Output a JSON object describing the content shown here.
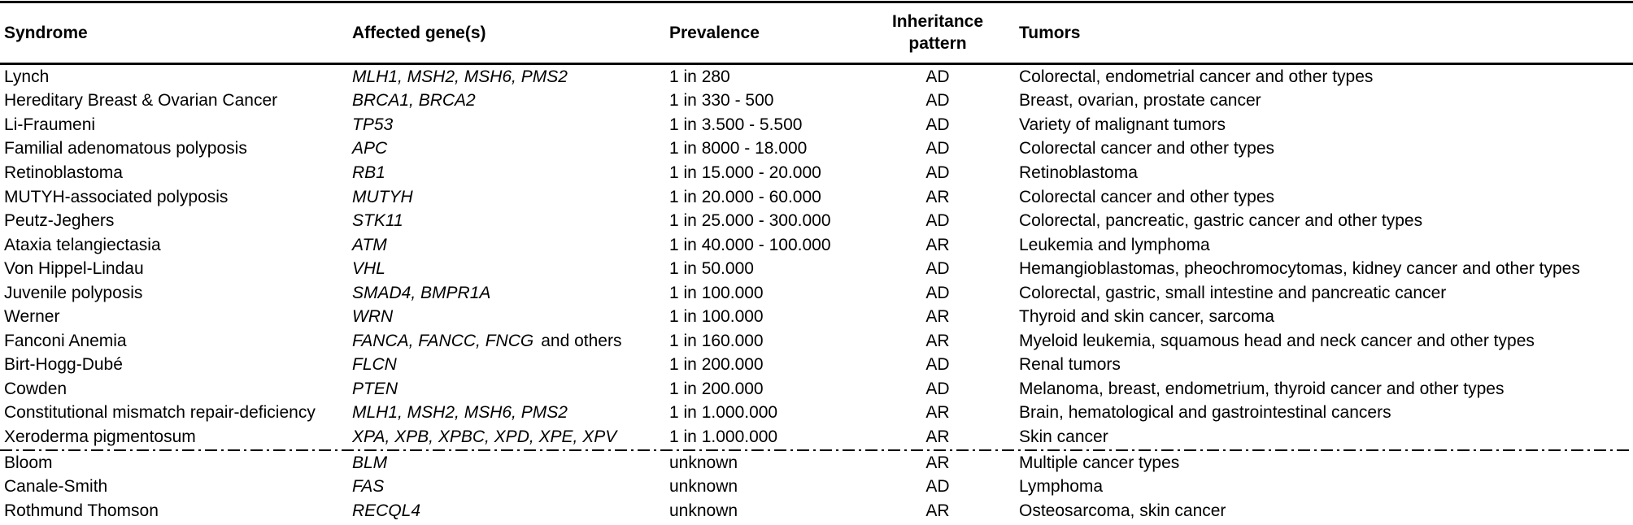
{
  "table": {
    "columns": [
      {
        "key": "syndrome",
        "label": "Syndrome"
      },
      {
        "key": "genes",
        "label": "Affected gene(s)"
      },
      {
        "key": "prevalence",
        "label": "Prevalence"
      },
      {
        "key": "inheritance",
        "label": "Inheritance pattern"
      },
      {
        "key": "tumors",
        "label": "Tumors"
      }
    ],
    "rows": [
      {
        "syndrome": "Lynch",
        "genes": "MLH1, MSH2, MSH6, PMS2",
        "genes_suffix": "",
        "prevalence": "1 in 280",
        "inheritance": "AD",
        "tumors": "Colorectal, endometrial cancer and other types"
      },
      {
        "syndrome": "Hereditary Breast & Ovarian Cancer",
        "genes": "BRCA1, BRCA2",
        "genes_suffix": "",
        "prevalence": "1 in 330 - 500",
        "inheritance": "AD",
        "tumors": "Breast, ovarian, prostate cancer"
      },
      {
        "syndrome": "Li-Fraumeni",
        "genes": "TP53",
        "genes_suffix": "",
        "prevalence": "1 in 3.500 - 5.500",
        "inheritance": "AD",
        "tumors": "Variety of malignant tumors"
      },
      {
        "syndrome": "Familial adenomatous polyposis",
        "genes": "APC",
        "genes_suffix": "",
        "prevalence": "1 in 8000 - 18.000",
        "inheritance": "AD",
        "tumors": "Colorectal cancer and other types"
      },
      {
        "syndrome": "Retinoblastoma",
        "genes": "RB1",
        "genes_suffix": "",
        "prevalence": "1 in 15.000 - 20.000",
        "inheritance": "AD",
        "tumors": "Retinoblastoma"
      },
      {
        "syndrome": "MUTYH-associated polyposis",
        "genes": "MUTYH",
        "genes_suffix": "",
        "prevalence": "1 in 20.000 - 60.000",
        "inheritance": "AR",
        "tumors": "Colorectal cancer and other types"
      },
      {
        "syndrome": "Peutz-Jeghers",
        "genes": "STK11",
        "genes_suffix": "",
        "prevalence": "1 in 25.000 - 300.000",
        "inheritance": "AD",
        "tumors": "Colorectal, pancreatic, gastric cancer and other types"
      },
      {
        "syndrome": "Ataxia telangiectasia",
        "genes": "ATM",
        "genes_suffix": "",
        "prevalence": "1 in 40.000 - 100.000",
        "inheritance": "AR",
        "tumors": "Leukemia and lymphoma"
      },
      {
        "syndrome": "Von Hippel-Lindau",
        "genes": "VHL",
        "genes_suffix": "",
        "prevalence": "1 in 50.000",
        "inheritance": "AD",
        "tumors": "Hemangioblastomas, pheochromocytomas, kidney cancer and other types"
      },
      {
        "syndrome": "Juvenile polyposis",
        "genes": "SMAD4, BMPR1A",
        "genes_suffix": "",
        "prevalence": "1 in 100.000",
        "inheritance": "AD",
        "tumors": "Colorectal, gastric, small intestine and pancreatic cancer"
      },
      {
        "syndrome": "Werner",
        "genes": "WRN",
        "genes_suffix": "",
        "prevalence": "1 in 100.000",
        "inheritance": "AR",
        "tumors": "Thyroid and skin cancer, sarcoma"
      },
      {
        "syndrome": "Fanconi Anemia",
        "genes": "FANCA, FANCC, FNCG",
        "genes_suffix": "and others",
        "prevalence": "1 in 160.000",
        "inheritance": "AR",
        "tumors": "Myeloid leukemia, squamous head and neck cancer and other types"
      },
      {
        "syndrome": "Birt-Hogg-Dubé",
        "genes": "FLCN",
        "genes_suffix": "",
        "prevalence": "1 in 200.000",
        "inheritance": "AD",
        "tumors": "Renal tumors"
      },
      {
        "syndrome": "Cowden",
        "genes": "PTEN",
        "genes_suffix": "",
        "prevalence": "1 in 200.000",
        "inheritance": "AD",
        "tumors": "Melanoma, breast, endometrium, thyroid cancer and other types"
      },
      {
        "syndrome": "Constitutional mismatch repair-deficiency",
        "genes": "MLH1, MSH2, MSH6, PMS2",
        "genes_suffix": "",
        "prevalence": "1 in 1.000.000",
        "inheritance": "AR",
        "tumors": "Brain, hematological and gastrointestinal cancers"
      },
      {
        "syndrome": "Xeroderma pigmentosum",
        "genes": "XPA, XPB, XPBC, XPD, XPE, XPV",
        "genes_suffix": "",
        "prevalence": "1 in 1.000.000",
        "inheritance": "AR",
        "tumors": "Skin cancer"
      },
      {
        "syndrome": "Bloom",
        "genes": "BLM",
        "genes_suffix": "",
        "prevalence": "unknown",
        "inheritance": "AR",
        "tumors": "Multiple cancer types"
      },
      {
        "syndrome": "Canale-Smith",
        "genes": "FAS",
        "genes_suffix": "",
        "prevalence": "unknown",
        "inheritance": "AD",
        "tumors": "Lymphoma"
      },
      {
        "syndrome": "Rothmund Thomson",
        "genes": "RECQL4",
        "genes_suffix": "",
        "prevalence": "unknown",
        "inheritance": "AR",
        "tumors": "Osteosarcoma, skin cancer"
      }
    ],
    "separator_after_row_index": 15
  },
  "colors": {
    "text": "#000000",
    "background": "#ffffff",
    "rule": "#000000"
  }
}
